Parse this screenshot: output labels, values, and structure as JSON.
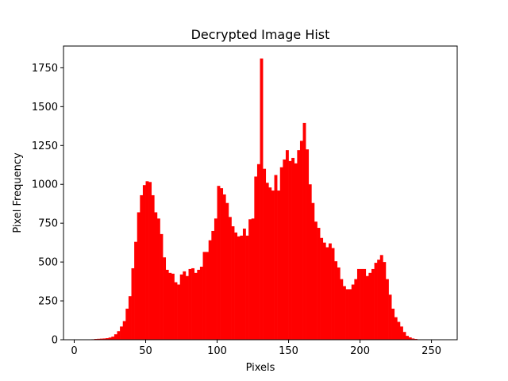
{
  "chart_data": {
    "type": "bar",
    "title": "Decrypted Image Hist",
    "xlabel": "Pixels",
    "ylabel": "Pixel Frequency",
    "xlim": [
      -7.5,
      268
    ],
    "ylim": [
      0,
      1890
    ],
    "xticks": [
      0,
      50,
      100,
      150,
      200,
      250
    ],
    "yticks": [
      0,
      250,
      500,
      750,
      1000,
      1250,
      1500,
      1750
    ],
    "grid": false,
    "bar_color": "#ff0000",
    "bin_width": 2,
    "bins": [
      {
        "x": 10,
        "count": 2
      },
      {
        "x": 12,
        "count": 3
      },
      {
        "x": 14,
        "count": 5
      },
      {
        "x": 16,
        "count": 6
      },
      {
        "x": 18,
        "count": 7
      },
      {
        "x": 20,
        "count": 8
      },
      {
        "x": 22,
        "count": 10
      },
      {
        "x": 24,
        "count": 14
      },
      {
        "x": 26,
        "count": 20
      },
      {
        "x": 28,
        "count": 35
      },
      {
        "x": 30,
        "count": 55
      },
      {
        "x": 32,
        "count": 85
      },
      {
        "x": 34,
        "count": 120
      },
      {
        "x": 36,
        "count": 200
      },
      {
        "x": 38,
        "count": 280
      },
      {
        "x": 40,
        "count": 460
      },
      {
        "x": 42,
        "count": 630
      },
      {
        "x": 44,
        "count": 820
      },
      {
        "x": 46,
        "count": 930
      },
      {
        "x": 48,
        "count": 995
      },
      {
        "x": 50,
        "count": 1020
      },
      {
        "x": 52,
        "count": 1015
      },
      {
        "x": 54,
        "count": 930
      },
      {
        "x": 56,
        "count": 820
      },
      {
        "x": 58,
        "count": 780
      },
      {
        "x": 60,
        "count": 680
      },
      {
        "x": 62,
        "count": 530
      },
      {
        "x": 64,
        "count": 450
      },
      {
        "x": 66,
        "count": 430
      },
      {
        "x": 68,
        "count": 425
      },
      {
        "x": 70,
        "count": 370
      },
      {
        "x": 72,
        "count": 355
      },
      {
        "x": 74,
        "count": 420
      },
      {
        "x": 76,
        "count": 440
      },
      {
        "x": 78,
        "count": 410
      },
      {
        "x": 80,
        "count": 455
      },
      {
        "x": 82,
        "count": 460
      },
      {
        "x": 84,
        "count": 430
      },
      {
        "x": 86,
        "count": 450
      },
      {
        "x": 88,
        "count": 470
      },
      {
        "x": 90,
        "count": 565
      },
      {
        "x": 92,
        "count": 565
      },
      {
        "x": 94,
        "count": 640
      },
      {
        "x": 96,
        "count": 700
      },
      {
        "x": 98,
        "count": 780
      },
      {
        "x": 100,
        "count": 990
      },
      {
        "x": 102,
        "count": 975
      },
      {
        "x": 104,
        "count": 935
      },
      {
        "x": 106,
        "count": 880
      },
      {
        "x": 108,
        "count": 790
      },
      {
        "x": 110,
        "count": 730
      },
      {
        "x": 112,
        "count": 690
      },
      {
        "x": 114,
        "count": 665
      },
      {
        "x": 116,
        "count": 670
      },
      {
        "x": 118,
        "count": 715
      },
      {
        "x": 120,
        "count": 670
      },
      {
        "x": 122,
        "count": 775
      },
      {
        "x": 124,
        "count": 780
      },
      {
        "x": 126,
        "count": 1050
      },
      {
        "x": 128,
        "count": 1130
      },
      {
        "x": 130,
        "count": 1810
      },
      {
        "x": 132,
        "count": 1100
      },
      {
        "x": 134,
        "count": 1010
      },
      {
        "x": 136,
        "count": 980
      },
      {
        "x": 138,
        "count": 960
      },
      {
        "x": 140,
        "count": 1060
      },
      {
        "x": 142,
        "count": 960
      },
      {
        "x": 144,
        "count": 1110
      },
      {
        "x": 146,
        "count": 1160
      },
      {
        "x": 148,
        "count": 1220
      },
      {
        "x": 150,
        "count": 1150
      },
      {
        "x": 152,
        "count": 1170
      },
      {
        "x": 154,
        "count": 1135
      },
      {
        "x": 156,
        "count": 1220
      },
      {
        "x": 158,
        "count": 1280
      },
      {
        "x": 160,
        "count": 1395
      },
      {
        "x": 162,
        "count": 1225
      },
      {
        "x": 164,
        "count": 1000
      },
      {
        "x": 166,
        "count": 880
      },
      {
        "x": 168,
        "count": 760
      },
      {
        "x": 170,
        "count": 720
      },
      {
        "x": 172,
        "count": 655
      },
      {
        "x": 174,
        "count": 625
      },
      {
        "x": 176,
        "count": 595
      },
      {
        "x": 178,
        "count": 620
      },
      {
        "x": 180,
        "count": 590
      },
      {
        "x": 182,
        "count": 505
      },
      {
        "x": 184,
        "count": 465
      },
      {
        "x": 186,
        "count": 390
      },
      {
        "x": 188,
        "count": 345
      },
      {
        "x": 190,
        "count": 325
      },
      {
        "x": 192,
        "count": 325
      },
      {
        "x": 194,
        "count": 355
      },
      {
        "x": 196,
        "count": 390
      },
      {
        "x": 198,
        "count": 455
      },
      {
        "x": 200,
        "count": 455
      },
      {
        "x": 202,
        "count": 455
      },
      {
        "x": 204,
        "count": 410
      },
      {
        "x": 206,
        "count": 430
      },
      {
        "x": 208,
        "count": 455
      },
      {
        "x": 210,
        "count": 495
      },
      {
        "x": 212,
        "count": 515
      },
      {
        "x": 214,
        "count": 545
      },
      {
        "x": 216,
        "count": 500
      },
      {
        "x": 218,
        "count": 390
      },
      {
        "x": 220,
        "count": 290
      },
      {
        "x": 222,
        "count": 200
      },
      {
        "x": 224,
        "count": 145
      },
      {
        "x": 226,
        "count": 115
      },
      {
        "x": 228,
        "count": 85
      },
      {
        "x": 230,
        "count": 50
      },
      {
        "x": 232,
        "count": 25
      },
      {
        "x": 234,
        "count": 15
      },
      {
        "x": 236,
        "count": 8
      },
      {
        "x": 238,
        "count": 5
      }
    ]
  }
}
